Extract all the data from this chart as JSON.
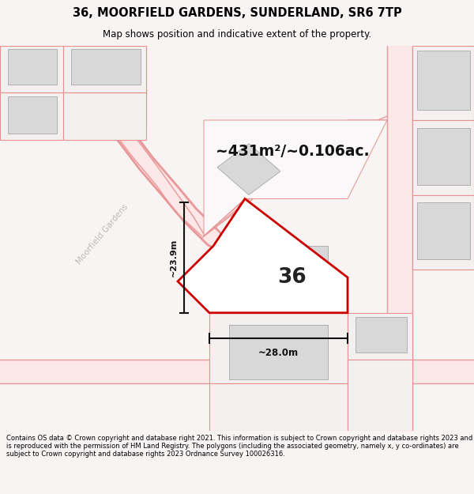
{
  "title_line1": "36, MOORFIELD GARDENS, SUNDERLAND, SR6 7TP",
  "title_line2": "Map shows position and indicative extent of the property.",
  "footer_text": "Contains OS data © Crown copyright and database right 2021. This information is subject to Crown copyright and database rights 2023 and is reproduced with the permission of HM Land Registry. The polygons (including the associated geometry, namely x, y co-ordinates) are subject to Crown copyright and database rights 2023 Ordnance Survey 100026316.",
  "area_label": "~431m²/~0.106ac.",
  "number_label": "36",
  "width_label": "~28.0m",
  "height_label": "~23.9m",
  "road_label": "Moorfield Gardens",
  "map_bg": "#ffffff",
  "plot_outline_color": "#cc0000",
  "building_fill": "#d8d8d8",
  "building_edge": "#b0b0b0",
  "parcel_fill": "#f5f0f0",
  "parcel_edge": "#e89090",
  "road_fill": "#fce8e8",
  "road_edge": "#e89898",
  "dim_color": "#111111",
  "road_label_color": "#c0b8b8",
  "header_bg": "#f8f4f4",
  "footer_bg": "#f8f4f4"
}
